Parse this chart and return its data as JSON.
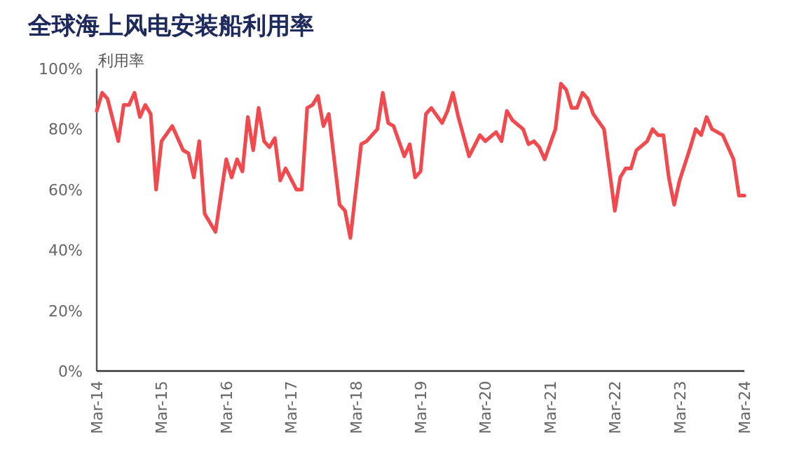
{
  "chart_data": {
    "type": "line",
    "title": "全球海上风电安装船利用率",
    "ylabel": "利用率",
    "x": [
      "2014-03",
      "2014-04",
      "2014-05",
      "2014-07",
      "2014-08",
      "2014-09",
      "2014-10",
      "2014-11",
      "2014-12",
      "2015-01",
      "2015-02",
      "2015-03",
      "2015-05",
      "2015-07",
      "2015-08",
      "2015-09",
      "2015-10",
      "2015-11",
      "2016-01",
      "2016-03",
      "2016-04",
      "2016-05",
      "2016-06",
      "2016-07",
      "2016-08",
      "2016-09",
      "2016-10",
      "2016-11",
      "2016-12",
      "2017-01",
      "2017-02",
      "2017-04",
      "2017-05",
      "2017-06",
      "2017-07",
      "2017-08",
      "2017-09",
      "2017-10",
      "2017-12",
      "2018-01",
      "2018-02",
      "2018-04",
      "2018-05",
      "2018-07",
      "2018-08",
      "2018-09",
      "2018-10",
      "2018-12",
      "2019-01",
      "2019-02",
      "2019-03",
      "2019-04",
      "2019-05",
      "2019-07",
      "2019-08",
      "2019-09",
      "2019-10",
      "2019-12",
      "2020-02",
      "2020-03",
      "2020-05",
      "2020-06",
      "2020-07",
      "2020-08",
      "2020-10",
      "2020-11",
      "2020-12",
      "2021-01",
      "2021-02",
      "2021-04",
      "2021-05",
      "2021-06",
      "2021-07",
      "2021-08",
      "2021-09",
      "2021-10",
      "2021-11",
      "2022-01",
      "2022-03",
      "2022-04",
      "2022-05",
      "2022-06",
      "2022-07",
      "2022-09",
      "2022-10",
      "2022-11",
      "2022-12",
      "2023-01",
      "2023-02",
      "2023-03",
      "2023-05",
      "2023-06",
      "2023-07",
      "2023-08",
      "2023-09",
      "2023-11",
      "2024-01",
      "2024-02",
      "2024-03"
    ],
    "series": [
      {
        "color": "#f04a4f",
        "values": [
          86,
          92,
          90,
          76,
          88,
          88,
          92,
          84,
          88,
          85,
          60,
          76,
          81,
          73,
          72,
          64,
          76,
          52,
          46,
          70,
          64,
          70,
          66,
          84,
          73,
          87,
          76,
          74,
          77,
          63,
          67,
          60,
          60,
          87,
          88,
          91,
          81,
          85,
          55,
          53,
          44,
          75,
          76,
          80,
          92,
          82,
          81,
          71,
          75,
          64,
          66,
          85,
          87,
          82,
          86,
          92,
          84,
          71,
          78,
          76,
          79,
          76,
          86,
          83,
          80,
          75,
          76,
          74,
          70,
          80,
          95,
          93,
          87,
          87,
          92,
          90,
          85,
          80,
          53,
          64,
          67,
          67,
          73,
          76,
          80,
          78,
          78,
          64,
          55,
          63,
          74,
          80,
          78,
          84,
          80,
          78,
          70,
          58,
          58
        ]
      }
    ],
    "xlim": [
      "2014-03",
      "2024-03"
    ],
    "xticks": [
      {
        "value": "2014-03",
        "label": "Mar-14"
      },
      {
        "value": "2015-03",
        "label": "Mar-15"
      },
      {
        "value": "2016-03",
        "label": "Mar-16"
      },
      {
        "value": "2017-03",
        "label": "Mar-17"
      },
      {
        "value": "2018-03",
        "label": "Mar-18"
      },
      {
        "value": "2019-03",
        "label": "Mar-19"
      },
      {
        "value": "2020-03",
        "label": "Mar-20"
      },
      {
        "value": "2021-03",
        "label": "Mar-21"
      },
      {
        "value": "2022-03",
        "label": "Mar-22"
      },
      {
        "value": "2023-03",
        "label": "Mar-23"
      },
      {
        "value": "2024-03",
        "label": "Mar-24"
      }
    ],
    "ylim": [
      0,
      100
    ],
    "yticks": [
      {
        "value": 0,
        "label": "0%"
      },
      {
        "value": 20,
        "label": "20%"
      },
      {
        "value": 40,
        "label": "40%"
      },
      {
        "value": 60,
        "label": "60%"
      },
      {
        "value": 80,
        "label": "80%"
      },
      {
        "value": 100,
        "label": "100%"
      }
    ],
    "grid": false,
    "marker": "none",
    "line_style": "solid"
  }
}
